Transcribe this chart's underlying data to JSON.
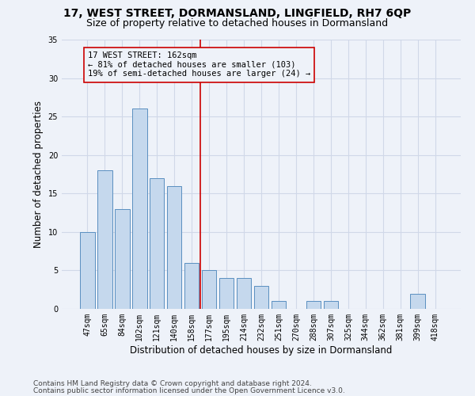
{
  "title": "17, WEST STREET, DORMANSLAND, LINGFIELD, RH7 6QP",
  "subtitle": "Size of property relative to detached houses in Dormansland",
  "xlabel": "Distribution of detached houses by size in Dormansland",
  "ylabel": "Number of detached properties",
  "categories": [
    "47sqm",
    "65sqm",
    "84sqm",
    "102sqm",
    "121sqm",
    "140sqm",
    "158sqm",
    "177sqm",
    "195sqm",
    "214sqm",
    "232sqm",
    "251sqm",
    "270sqm",
    "288sqm",
    "307sqm",
    "325sqm",
    "344sqm",
    "362sqm",
    "381sqm",
    "399sqm",
    "418sqm"
  ],
  "values": [
    10,
    18,
    13,
    26,
    17,
    16,
    6,
    5,
    4,
    4,
    3,
    1,
    0,
    1,
    1,
    0,
    0,
    0,
    0,
    2,
    0
  ],
  "bar_color": "#c5d8ed",
  "bar_edge_color": "#5a8fc0",
  "grid_color": "#d0d8e8",
  "annotation_box_text": "17 WEST STREET: 162sqm\n← 81% of detached houses are smaller (103)\n19% of semi-detached houses are larger (24) →",
  "vline_x": 6.5,
  "vline_color": "#cc0000",
  "box_edge_color": "#cc0000",
  "ylim": [
    0,
    35
  ],
  "yticks": [
    0,
    5,
    10,
    15,
    20,
    25,
    30,
    35
  ],
  "footnote1": "Contains HM Land Registry data © Crown copyright and database right 2024.",
  "footnote2": "Contains public sector information licensed under the Open Government Licence v3.0.",
  "title_fontsize": 10,
  "subtitle_fontsize": 9,
  "annotation_fontsize": 7.5,
  "axis_label_fontsize": 8.5,
  "tick_fontsize": 7,
  "footnote_fontsize": 6.5,
  "background_color": "#eef2f9"
}
